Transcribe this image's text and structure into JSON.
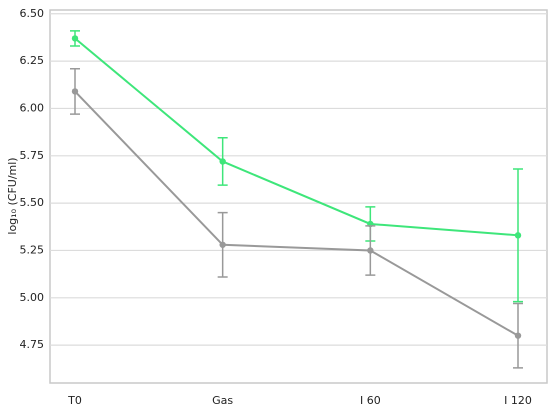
{
  "chart_data": {
    "type": "line",
    "y_label": "log₁₀ (CFU/ml)",
    "categories": [
      "T0",
      "Gas",
      "I 60",
      "I 120"
    ],
    "series": [
      {
        "color": "#3ee67a",
        "values": [
          6.37,
          5.72,
          5.39,
          5.33
        ],
        "errors": [
          0.04,
          0.125,
          0.09,
          0.35
        ]
      },
      {
        "color": "#999999",
        "values": [
          6.09,
          5.28,
          5.25,
          4.8
        ],
        "errors": [
          0.12,
          0.17,
          0.13,
          0.17
        ]
      }
    ],
    "ylim": [
      4.55,
      6.52
    ],
    "yticks": [
      {
        "value": 4.75,
        "label": "4.75"
      },
      {
        "value": 5.0,
        "label": "5.00"
      },
      {
        "value": 5.25,
        "label": "5.25"
      },
      {
        "value": 5.5,
        "label": "5.50"
      },
      {
        "value": 5.75,
        "label": "5.75"
      },
      {
        "value": 6.0,
        "label": "6.00"
      },
      {
        "value": 6.25,
        "label": "6.25"
      },
      {
        "value": 6.5,
        "label": "6.50"
      }
    ],
    "grid": true
  }
}
